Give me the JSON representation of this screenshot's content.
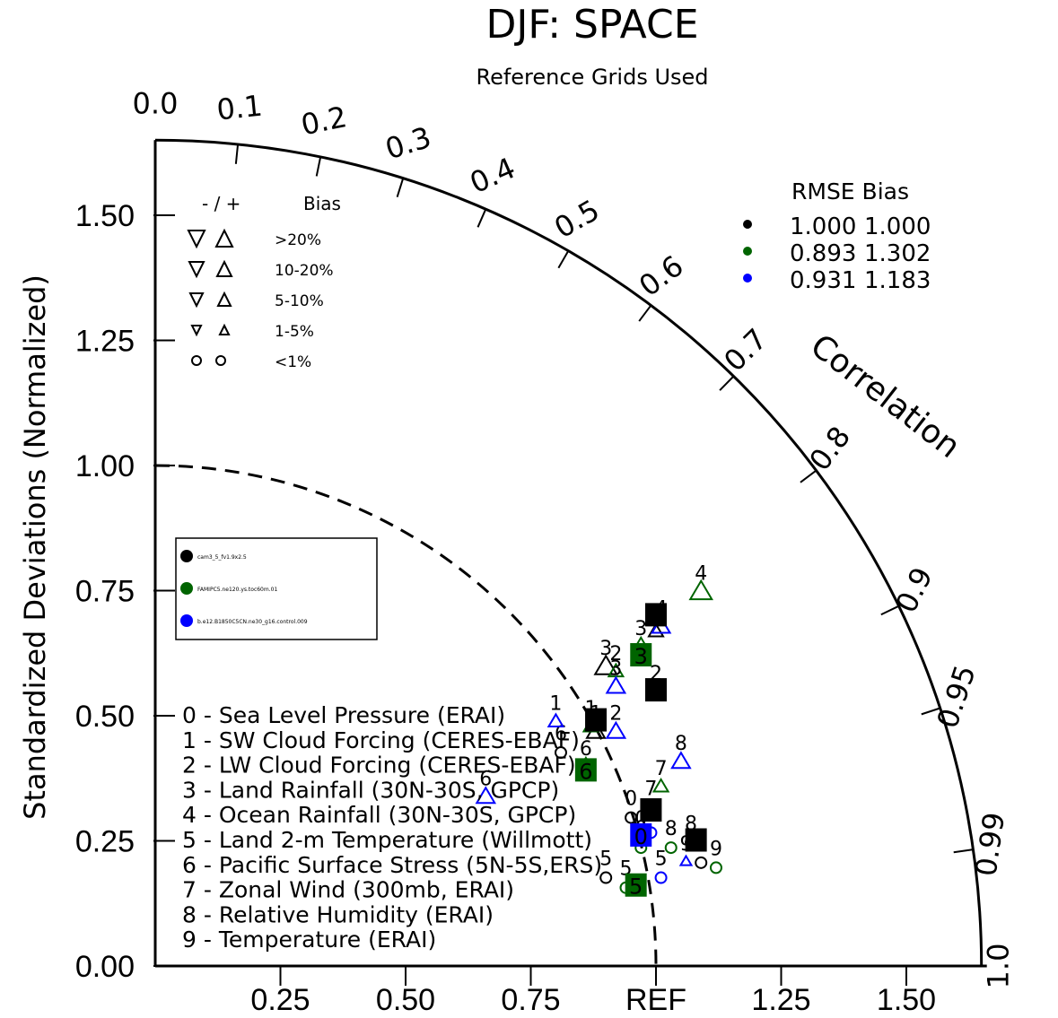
{
  "chart_data": {
    "type": "taylor",
    "title": "DJF: SPACE",
    "subtitle": "Reference Grids Used",
    "ylabel": "Standardized Deviations (Normalized)",
    "corr_label": "Correlation",
    "ref_label": "REF",
    "sd_ticks": [
      "0.00",
      "0.25",
      "0.50",
      "0.75",
      "1.00",
      "1.25",
      "1.50"
    ],
    "x_ticks": [
      "0.25",
      "0.50",
      "0.75",
      "REF",
      "1.25",
      "1.50"
    ],
    "corr_ticks": [
      {
        "r": 0.0,
        "text": "0.0"
      },
      {
        "r": 0.1,
        "text": "0.1"
      },
      {
        "r": 0.2,
        "text": "0.2"
      },
      {
        "r": 0.3,
        "text": "0.3"
      },
      {
        "r": 0.4,
        "text": "0.4"
      },
      {
        "r": 0.5,
        "text": "0.5"
      },
      {
        "r": 0.6,
        "text": "0.6"
      },
      {
        "r": 0.7,
        "text": "0.7"
      },
      {
        "r": 0.8,
        "text": "0.8"
      },
      {
        "r": 0.9,
        "text": "0.9"
      },
      {
        "r": 0.95,
        "text": "0.95"
      },
      {
        "r": 0.99,
        "text": "0.99"
      },
      {
        "r": 1.0,
        "text": "1.0"
      }
    ],
    "max_sd": 1.65,
    "variables": [
      "0 - Sea Level Pressure (ERAI)",
      "1 - SW Cloud Forcing (CERES-EBAF)",
      "2 - LW Cloud Forcing (CERES-EBAF)",
      "3 - Land Rainfall (30N-30S, GPCP)",
      "4 - Ocean Rainfall (30N-30S, GPCP)",
      "5 - Land 2-m Temperature (Willmott)",
      "6 - Pacific Surface Stress (5N-5S,ERS)",
      "7 - Zonal Wind (300mb, ERAI)",
      "8 - Relative Humidity (ERAI)",
      "9 - Temperature (ERAI)"
    ],
    "bias_legend": {
      "header_sign": "- / +",
      "header_bias": "Bias",
      "rows": [
        ">20%",
        "10-20%",
        "5-10%",
        "1-5%",
        "<1%"
      ]
    },
    "rmse_table": {
      "header": "RMSE  Bias",
      "rows": [
        {
          "color": "#000000",
          "rmse": "1.000",
          "bias": "1.000"
        },
        {
          "color": "#006400",
          "rmse": "0.893",
          "bias": "1.302"
        },
        {
          "color": "#0000ff",
          "rmse": "0.931",
          "bias": "1.183"
        }
      ]
    },
    "cases": [
      {
        "name": "cam3_5_fv1.9x2.5",
        "color": "#000000"
      },
      {
        "name": "FAMIPC5.ne120.ys.toc60m.01",
        "color": "#006400"
      },
      {
        "name": "b.e12.B1850C5CN.ne30_g16.control.009",
        "color": "#0000ff"
      }
    ],
    "points": [
      {
        "series": 0,
        "var": "0",
        "x": 0.95,
        "y": 0.3,
        "bias": "circle",
        "size": 0
      },
      {
        "series": 0,
        "var": "1",
        "x": 0.88,
        "y": 0.47,
        "bias": "up",
        "size": 2
      },
      {
        "series": 0,
        "var": "2",
        "x": 1.0,
        "y": 0.55,
        "bias": "up",
        "size": 0
      },
      {
        "series": 0,
        "var": "3",
        "x": 0.9,
        "y": 0.6,
        "bias": "up",
        "size": 3
      },
      {
        "series": 0,
        "var": "4",
        "x": 1.0,
        "y": 0.67,
        "bias": "up",
        "size": 1
      },
      {
        "series": 0,
        "var": "5",
        "x": 0.9,
        "y": 0.18,
        "bias": "circle",
        "size": 0
      },
      {
        "series": 0,
        "var": "6",
        "x": 0.81,
        "y": 0.43,
        "bias": "circle",
        "size": 0
      },
      {
        "series": 0,
        "var": "7",
        "x": 0.99,
        "y": 0.32,
        "bias": "circle",
        "size": 0
      },
      {
        "series": 0,
        "var": "8",
        "x": 1.07,
        "y": 0.25,
        "bias": "circle",
        "size": 0
      },
      {
        "series": 0,
        "var": "9",
        "x": 1.09,
        "y": 0.21,
        "bias": "circle",
        "size": 0
      },
      {
        "series": 1,
        "var": "0",
        "x": 0.97,
        "y": 0.24,
        "bias": "circle",
        "size": 0
      },
      {
        "series": 1,
        "var": "1",
        "x": 0.87,
        "y": 0.48,
        "bias": "up",
        "size": 1
      },
      {
        "series": 1,
        "var": "2",
        "x": 0.92,
        "y": 0.59,
        "bias": "up",
        "size": 1
      },
      {
        "series": 1,
        "var": "3",
        "x": 0.97,
        "y": 0.64,
        "bias": "up",
        "size": 2
      },
      {
        "series": 1,
        "var": "4",
        "x": 1.09,
        "y": 0.75,
        "bias": "up",
        "size": 3
      },
      {
        "series": 1,
        "var": "5",
        "x": 0.94,
        "y": 0.16,
        "bias": "circle",
        "size": 0
      },
      {
        "series": 1,
        "var": "6",
        "x": 0.86,
        "y": 0.4,
        "bias": "up",
        "size": 2
      },
      {
        "series": 1,
        "var": "7",
        "x": 1.01,
        "y": 0.36,
        "bias": "up",
        "size": 1
      },
      {
        "series": 1,
        "var": "8",
        "x": 1.03,
        "y": 0.24,
        "bias": "circle",
        "size": 0
      },
      {
        "series": 1,
        "var": "9",
        "x": 1.12,
        "y": 0.2,
        "bias": "circle",
        "size": 0
      },
      {
        "series": 2,
        "var": "0",
        "x": 0.97,
        "y": 0.26,
        "bias": "circle",
        "size": 0
      },
      {
        "series": 2,
        "var": "1",
        "x": 0.8,
        "y": 0.49,
        "bias": "up",
        "size": 1
      },
      {
        "series": 2,
        "var": "2",
        "x": 0.92,
        "y": 0.47,
        "bias": "up",
        "size": 2
      },
      {
        "series": 2,
        "var": "3",
        "x": 0.92,
        "y": 0.56,
        "bias": "up",
        "size": 2
      },
      {
        "series": 2,
        "var": "4",
        "x": 1.01,
        "y": 0.68,
        "bias": "up",
        "size": 2
      },
      {
        "series": 2,
        "var": "5",
        "x": 1.01,
        "y": 0.18,
        "bias": "circle",
        "size": 0
      },
      {
        "series": 2,
        "var": "6",
        "x": 0.66,
        "y": 0.34,
        "bias": "up",
        "size": 2
      },
      {
        "series": 2,
        "var": "7",
        "x": 0.99,
        "y": 0.27,
        "bias": "circle",
        "size": 0
      },
      {
        "series": 2,
        "var": "8",
        "x": 1.05,
        "y": 0.41,
        "bias": "up",
        "size": 2
      },
      {
        "series": 2,
        "var": "9",
        "x": 1.06,
        "y": 0.21,
        "bias": "up",
        "size": 0
      }
    ],
    "highlighted": [
      {
        "series": 0,
        "var": "1",
        "x": 0.88,
        "y": 0.49
      },
      {
        "series": 0,
        "var": "2",
        "x": 1.0,
        "y": 0.55
      },
      {
        "series": 0,
        "var": "4",
        "x": 1.0,
        "y": 0.7
      },
      {
        "series": 0,
        "var": "7",
        "x": 0.99,
        "y": 0.31
      },
      {
        "series": 0,
        "var": "9",
        "x": 1.08,
        "y": 0.25
      },
      {
        "series": 1,
        "var": "3",
        "x": 0.97,
        "y": 0.62
      },
      {
        "series": 1,
        "var": "6",
        "x": 0.86,
        "y": 0.39
      },
      {
        "series": 1,
        "var": "5",
        "x": 0.96,
        "y": 0.16
      },
      {
        "series": 2,
        "var": "0",
        "x": 0.97,
        "y": 0.26
      }
    ]
  }
}
